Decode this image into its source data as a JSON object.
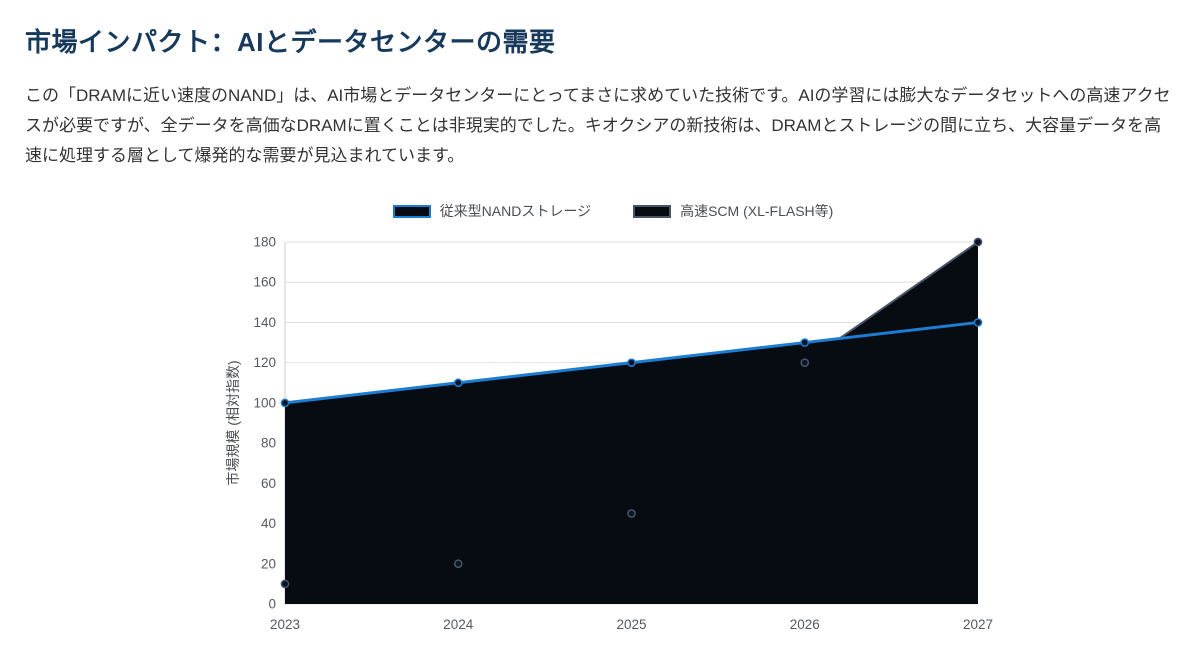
{
  "page": {
    "title": "市場インパクト：AIとデータセンターの需要",
    "body": "この「DRAMに近い速度のNAND」は、AI市場とデータセンターにとってまさに求めていた技術です。AIの学習には膨大なデータセットへの高速アクセスが必要ですが、全データを高価なDRAMに置くことは非現実的でした。キオクシアの新技術は、DRAMとストレージの間に立ち、大容量データを高速に処理する層として爆発的な需要が見込まれています。"
  },
  "colors": {
    "title": "#17395c",
    "body_text": "#333333",
    "grid": "#e2e2e2",
    "axis": "#cfcfcf",
    "tick_text": "#555a60"
  },
  "chart_data": {
    "type": "area",
    "x": [
      2023,
      2024,
      2025,
      2026,
      2027
    ],
    "series": [
      {
        "name": "従来型NANDストレージ",
        "values": [
          100,
          110,
          120,
          130,
          140
        ],
        "line_color": "#1d7dd3",
        "fill_color": "#070b12"
      },
      {
        "name": "高速SCM (XL-FLASH等)",
        "values": [
          10,
          20,
          45,
          120,
          180
        ],
        "line_color": "#4a5568",
        "fill_color": "#070b12"
      }
    ],
    "ylabel": "市場規模 (相対指数)",
    "xlabel": "",
    "ylim": [
      0,
      180
    ],
    "yticks": [
      0,
      20,
      40,
      60,
      80,
      100,
      120,
      140,
      160,
      180
    ],
    "grid": true,
    "legend_position": "top",
    "point_fill": "#0b1524"
  }
}
